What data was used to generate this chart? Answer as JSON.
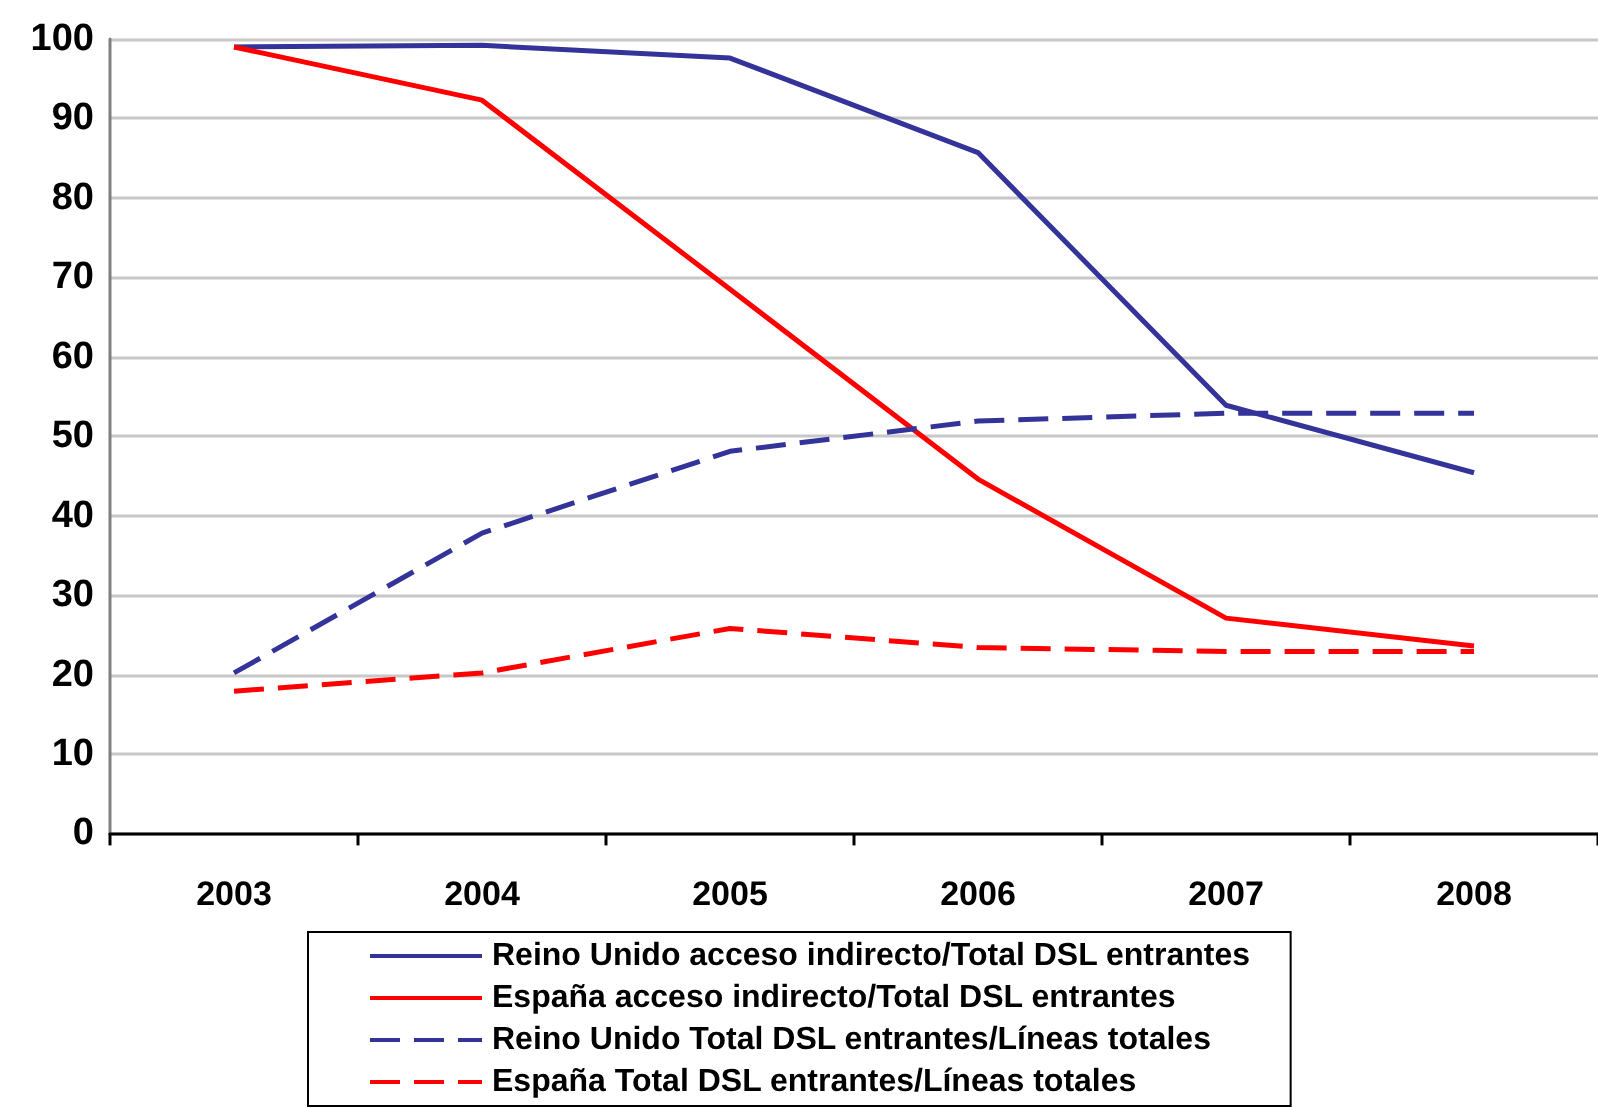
{
  "chart_data": {
    "type": "line",
    "categories": [
      "2003",
      "2004",
      "2005",
      "2006",
      "2007",
      "2008"
    ],
    "series": [
      {
        "name": "Reino Unido acceso indirecto/Total DSL entrantes",
        "color": "#333399",
        "line_style": "solid",
        "values": [
          99.0,
          99.2,
          97.6,
          85.7,
          53.9,
          45.4
        ]
      },
      {
        "name": "España acceso indirecto/Total DSL entrantes",
        "color": "#ff0000",
        "line_style": "solid",
        "values": [
          99.0,
          92.3,
          68.5,
          44.6,
          27.1,
          23.6
        ]
      },
      {
        "name": "Reino Unido Total DSL entrantes/Líneas totales",
        "color": "#333399",
        "line_style": "dashed",
        "values": [
          20.2,
          37.8,
          48.1,
          51.9,
          52.9,
          52.9
        ]
      },
      {
        "name": "España Total DSL entrantes/Líneas totales",
        "color": "#ff0000",
        "line_style": "dashed",
        "values": [
          17.9,
          20.2,
          25.8,
          23.4,
          22.9,
          22.9
        ]
      }
    ],
    "ylim": [
      0,
      100
    ],
    "yticks": [
      0,
      10,
      20,
      30,
      40,
      50,
      60,
      70,
      80,
      90,
      100
    ],
    "grid": "y",
    "legend": "bottom",
    "marker": "none"
  }
}
